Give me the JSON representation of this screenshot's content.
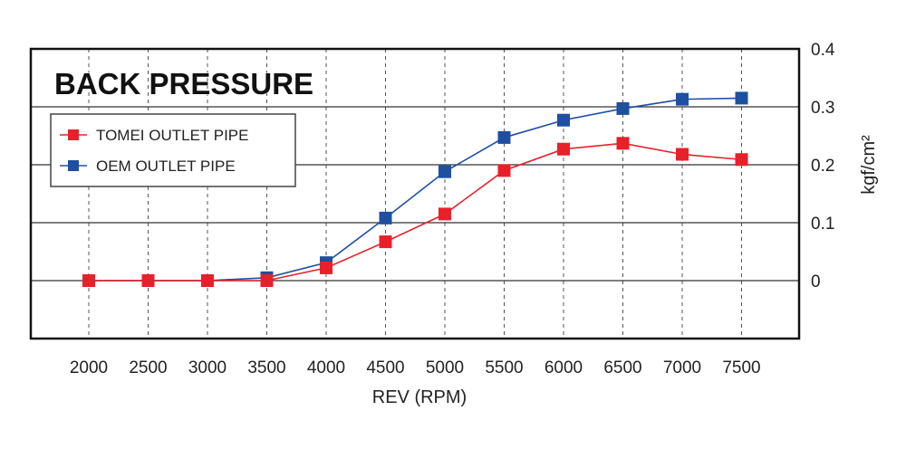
{
  "chart_data": {
    "type": "line",
    "title": "BACK PRESSURE",
    "xlabel": "REV (RPM)",
    "ylabel": "kgf/cm²",
    "x": [
      2000,
      2500,
      3000,
      3500,
      4000,
      4500,
      5000,
      5500,
      6000,
      6500,
      7000,
      7500
    ],
    "x_tick_labels": [
      "2000",
      "2500",
      "3000",
      "3500",
      "4000",
      "4500",
      "5000",
      "5500",
      "6000",
      "6500",
      "7000",
      "7500"
    ],
    "y_tick_labels": [
      "0.4",
      "0.3",
      "0.2",
      "0.1",
      "0"
    ],
    "y_ticks": [
      0.4,
      0.3,
      0.2,
      0.1,
      0
    ],
    "ylim": [
      -0.1,
      0.4
    ],
    "grid": true,
    "legend_position": "top-left",
    "series": [
      {
        "name": "TOMEI OUTLET PIPE",
        "color": "#e8202a",
        "values": [
          0,
          0,
          0,
          0,
          0.022,
          0.067,
          0.115,
          0.19,
          0.227,
          0.237,
          0.218,
          0.209
        ]
      },
      {
        "name": "OEM OUTLET PIPE",
        "color": "#1e4fa0",
        "values": [
          0,
          0,
          0,
          0.005,
          0.031,
          0.108,
          0.188,
          0.247,
          0.277,
          0.297,
          0.313,
          0.315
        ]
      }
    ]
  }
}
